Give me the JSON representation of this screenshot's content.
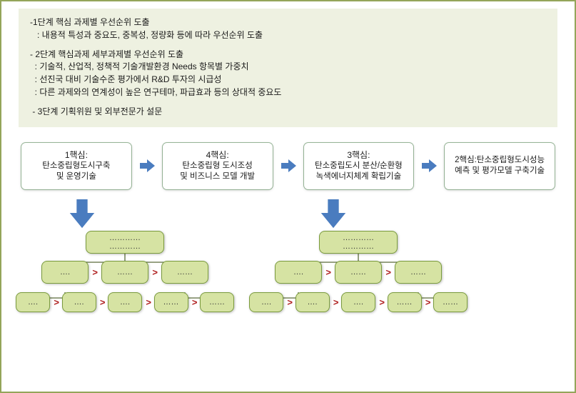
{
  "colors": {
    "outer_border": "#94a55a",
    "info_bg": "#eef1e1",
    "node_fill": "#d6e3a3",
    "node_border": "#7a9b3d",
    "arrow_fill": "#4a7cbf",
    "tree_line": "#5a6b3a",
    "gt_color": "#b02020"
  },
  "info": {
    "lines": [
      "-1단계 핵심 과제별 우선순위 도출",
      "   : 내용적 특성과 중요도, 중복성, 정량화 등에 따라 우선순위 도출",
      "",
      "- 2단계 핵심과제 세부과제별 우선순위 도출",
      "  : 기술적, 산업적, 정책적 기술개발환경 Needs 항목별 가중치",
      "  : 선진국 대비 기술수준 평가에서 R&D 투자의 시급성",
      "  : 다른 과제와의 연계성이 높은 연구테마, 파급효과 등의 상대적 중요도",
      "",
      " - 3단계 기획위원 및 외부전문가 설문"
    ]
  },
  "flow": {
    "cores": [
      {
        "title": "1핵심:",
        "body": "탄소중립형도시구축\n및 운영기술"
      },
      {
        "title": "4핵심:",
        "body": "탄소중립형 도시조성\n및 비즈니스 모델 개발"
      },
      {
        "title": "3핵심:",
        "body": "탄소중립도시 분산/순환형\n녹색에너지체계 확립기술"
      },
      {
        "title": "",
        "body": "2핵심:탄소중립형도시성능\n예측 및 평가모델 구축기술"
      }
    ]
  },
  "tree": {
    "top": "…………\n…………",
    "mid_labels": [
      "….",
      "……",
      "……"
    ],
    "bot_labels": [
      "….",
      "….",
      "….",
      "……",
      "……"
    ]
  }
}
